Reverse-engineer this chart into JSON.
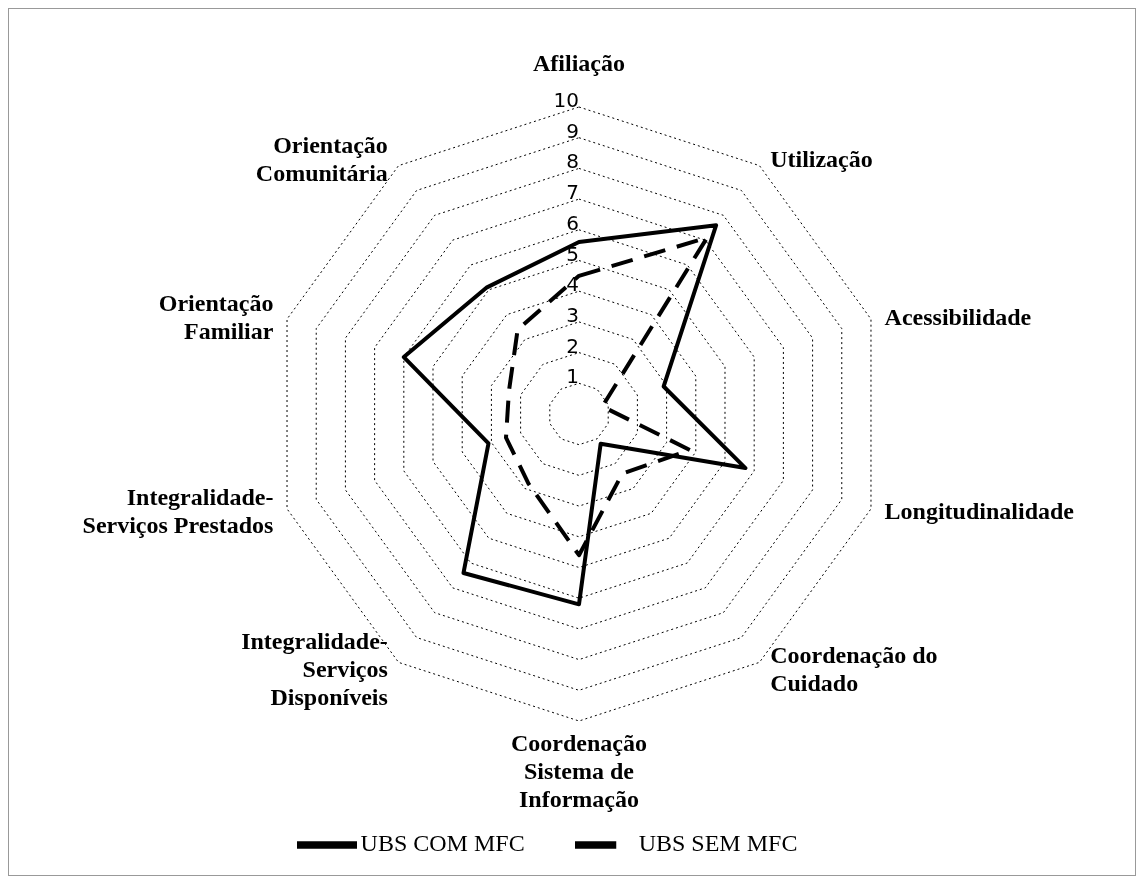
{
  "chart_data": {
    "type": "radar",
    "categories": [
      "Afiliação",
      "Utilização",
      "Acessibilidade",
      "Longitudinalidade",
      "Coordenação do\nCuidado",
      "Coordenação\nSistema de\nInformação",
      "Integralidade-\nServiços\nDisponíveis",
      "Integralidade-\nServiços Prestados",
      "Orientação\nFamiliar",
      "Orientação\nComunitária"
    ],
    "series": [
      {
        "name": "UBS COM MFC",
        "color": "#000000",
        "line_style": "solid",
        "values": [
          5.6,
          7.6,
          2.9,
          5.7,
          1.2,
          6.2,
          6.4,
          3.1,
          6.0,
          5.1
        ]
      },
      {
        "name": "UBS SEM MFC",
        "color": "#000000",
        "line_style": "dashed",
        "values": [
          4.5,
          7.1,
          0.8,
          3.8,
          2.4,
          4.6,
          2.8,
          2.5,
          2.4,
          3.4
        ]
      }
    ],
    "ylim": [
      0,
      10
    ],
    "yticks": [
      1,
      2,
      3,
      4,
      5,
      6,
      7,
      8,
      9,
      10
    ],
    "grid": true,
    "legend": "bottom",
    "marker": "none"
  }
}
